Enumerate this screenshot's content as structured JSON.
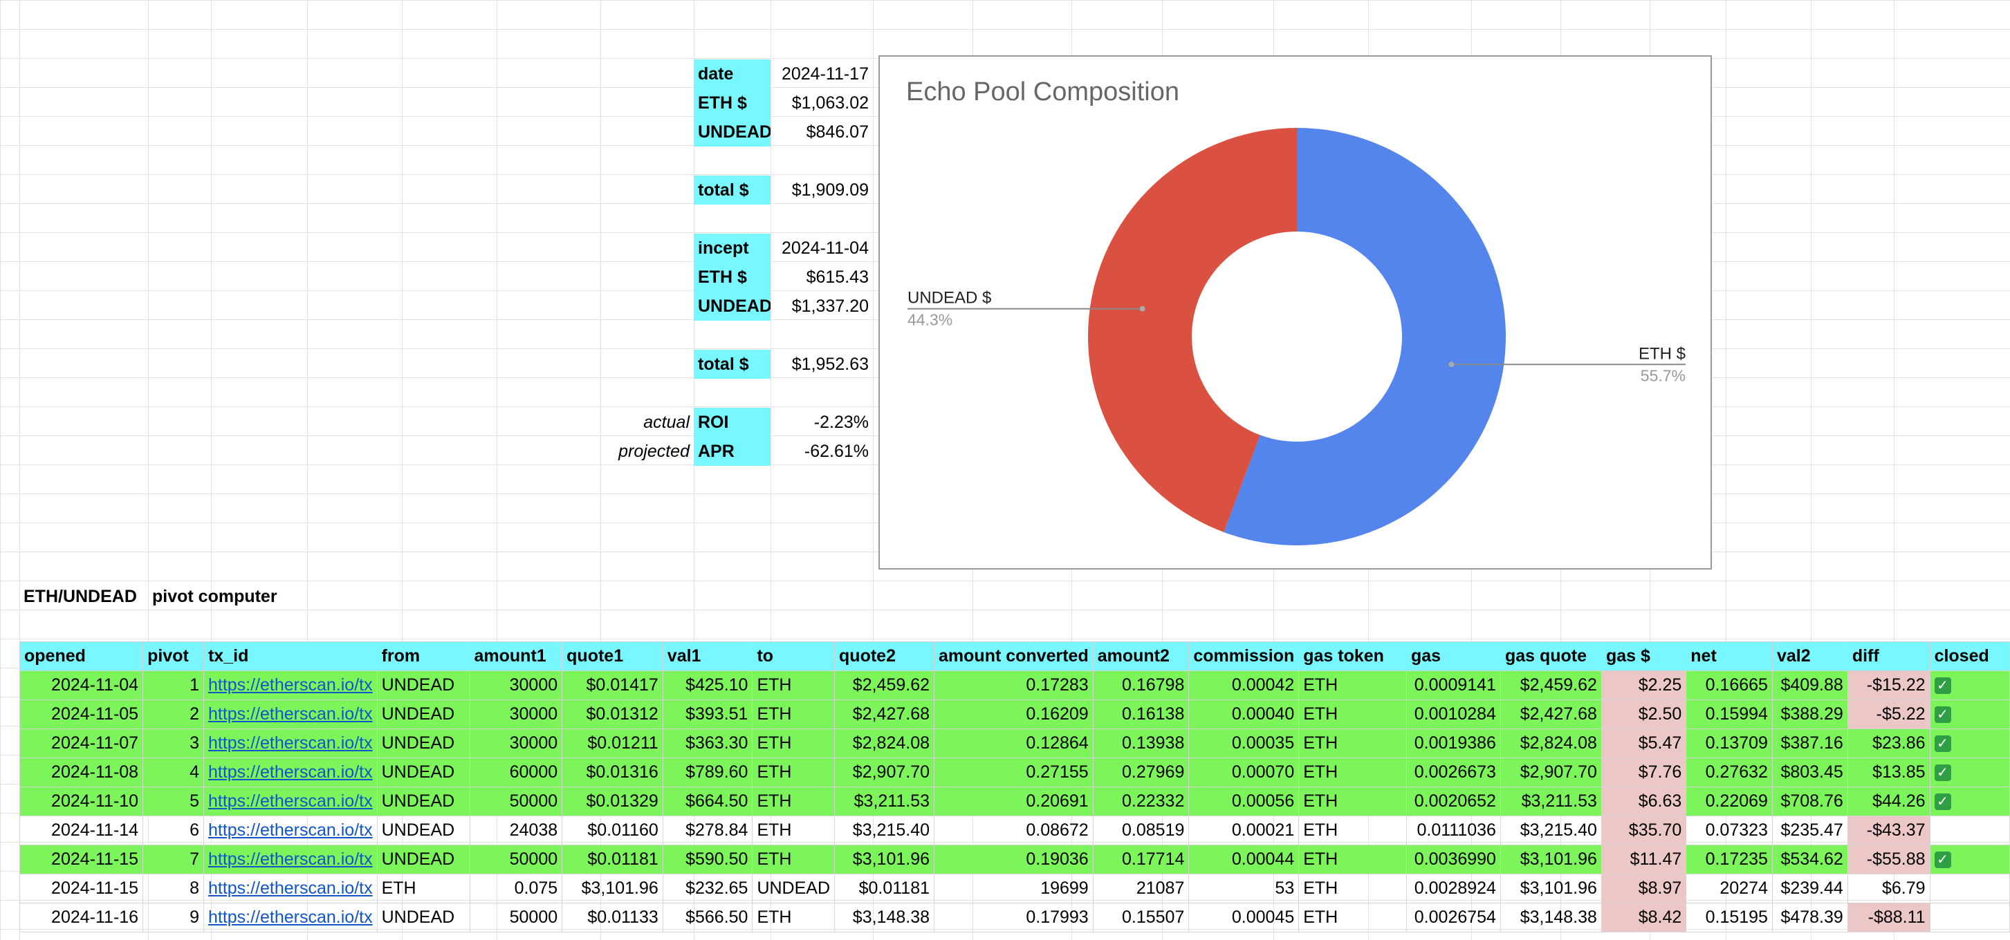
{
  "summary": {
    "current": {
      "date_label": "date",
      "date_value": "2024-11-17",
      "eth_label": "ETH $",
      "eth_value": "$1,063.02",
      "undead_label": "UNDEAD $",
      "undead_value": "$846.07",
      "total_label": "total $",
      "total_value": "$1,909.09"
    },
    "incept": {
      "date_label": "incept",
      "date_value": "2024-11-04",
      "eth_label": "ETH $",
      "eth_value": "$615.43",
      "undead_label": "UNDEAD $",
      "undead_value": "$1,337.20",
      "total_label": "total $",
      "total_value": "$1,952.63"
    },
    "roi": {
      "side": "actual",
      "label": "ROI",
      "value": "-2.23%"
    },
    "apr": {
      "side": "projected",
      "label": "APR",
      "value": "-62.61%"
    }
  },
  "section_title": {
    "a": "ETH/UNDEAD",
    "b": "pivot computer"
  },
  "table": {
    "headers": [
      "opened",
      "pivot",
      "tx_id",
      "from",
      "amount1",
      "quote1",
      "val1",
      "to",
      "quote2",
      "amount converted",
      "amount2",
      "commission",
      "gas token",
      "gas",
      "gas quote",
      "gas $",
      "net",
      "val2",
      "diff",
      "closed"
    ],
    "rows": [
      {
        "green": true,
        "cells": [
          "2024-11-04",
          "1",
          "https://etherscan.io/tx",
          "UNDEAD",
          "30000",
          "$0.01417",
          "$425.10",
          "ETH",
          "$2,459.62",
          "0.17283",
          "0.16798",
          "0.00042",
          "ETH",
          "0.0009141",
          "$2,459.62",
          "$2.25",
          "0.16665",
          "$409.88",
          "-$15.22",
          "✓"
        ],
        "neg": true
      },
      {
        "green": true,
        "cells": [
          "2024-11-05",
          "2",
          "https://etherscan.io/tx",
          "UNDEAD",
          "30000",
          "$0.01312",
          "$393.51",
          "ETH",
          "$2,427.68",
          "0.16209",
          "0.16138",
          "0.00040",
          "ETH",
          "0.0010284",
          "$2,427.68",
          "$2.50",
          "0.15994",
          "$388.29",
          "-$5.22",
          "✓"
        ],
        "neg": true
      },
      {
        "green": true,
        "cells": [
          "2024-11-07",
          "3",
          "https://etherscan.io/tx",
          "UNDEAD",
          "30000",
          "$0.01211",
          "$363.30",
          "ETH",
          "$2,824.08",
          "0.12864",
          "0.13938",
          "0.00035",
          "ETH",
          "0.0019386",
          "$2,824.08",
          "$5.47",
          "0.13709",
          "$387.16",
          "$23.86",
          "✓"
        ],
        "neg": false
      },
      {
        "green": true,
        "cells": [
          "2024-11-08",
          "4",
          "https://etherscan.io/tx",
          "UNDEAD",
          "60000",
          "$0.01316",
          "$789.60",
          "ETH",
          "$2,907.70",
          "0.27155",
          "0.27969",
          "0.00070",
          "ETH",
          "0.0026673",
          "$2,907.70",
          "$7.76",
          "0.27632",
          "$803.45",
          "$13.85",
          "✓"
        ],
        "neg": false
      },
      {
        "green": true,
        "cells": [
          "2024-11-10",
          "5",
          "https://etherscan.io/tx",
          "UNDEAD",
          "50000",
          "$0.01329",
          "$664.50",
          "ETH",
          "$3,211.53",
          "0.20691",
          "0.22332",
          "0.00056",
          "ETH",
          "0.0020652",
          "$3,211.53",
          "$6.63",
          "0.22069",
          "$708.76",
          "$44.26",
          "✓"
        ],
        "neg": false
      },
      {
        "green": false,
        "cells": [
          "2024-11-14",
          "6",
          "https://etherscan.io/tx",
          "UNDEAD",
          "24038",
          "$0.01160",
          "$278.84",
          "ETH",
          "$3,215.40",
          "0.08672",
          "0.08519",
          "0.00021",
          "ETH",
          "0.0111036",
          "$3,215.40",
          "$35.70",
          "0.07323",
          "$235.47",
          "-$43.37",
          ""
        ],
        "neg": true
      },
      {
        "green": true,
        "cells": [
          "2024-11-15",
          "7",
          "https://etherscan.io/tx",
          "UNDEAD",
          "50000",
          "$0.01181",
          "$590.50",
          "ETH",
          "$3,101.96",
          "0.19036",
          "0.17714",
          "0.00044",
          "ETH",
          "0.0036990",
          "$3,101.96",
          "$11.47",
          "0.17235",
          "$534.62",
          "-$55.88",
          "✓"
        ],
        "neg": true
      },
      {
        "green": false,
        "cells": [
          "2024-11-15",
          "8",
          "https://etherscan.io/tx",
          "ETH",
          "0.075",
          "$3,101.96",
          "$232.65",
          "UNDEAD",
          "$0.01181",
          "19699",
          "21087",
          "53",
          "ETH",
          "0.0028924",
          "$3,101.96",
          "$8.97",
          "20274",
          "$239.44",
          "$6.79",
          ""
        ],
        "neg": false
      },
      {
        "green": false,
        "cells": [
          "2024-11-16",
          "9",
          "https://etherscan.io/tx",
          "UNDEAD",
          "50000",
          "$0.01133",
          "$566.50",
          "ETH",
          "$3,148.38",
          "0.17993",
          "0.15507",
          "0.00045",
          "ETH",
          "0.0026754",
          "$3,148.38",
          "$8.42",
          "0.15195",
          "$478.39",
          "-$88.11",
          ""
        ],
        "neg": true
      }
    ]
  },
  "chart_data": {
    "type": "pie",
    "title": "Echo Pool Composition",
    "donut": true,
    "slices": [
      {
        "label": "ETH $",
        "value": 1063.02,
        "percent": "55.7%",
        "color": "#5485ec"
      },
      {
        "label": "UNDEAD $",
        "value": 846.07,
        "percent": "44.3%",
        "color": "#da5141"
      }
    ]
  },
  "colors": {
    "header_cyan": "#79f7ff",
    "row_green": "#7cf55a",
    "gas_pink": "#ecc7c7",
    "link": "#1155cc"
  }
}
